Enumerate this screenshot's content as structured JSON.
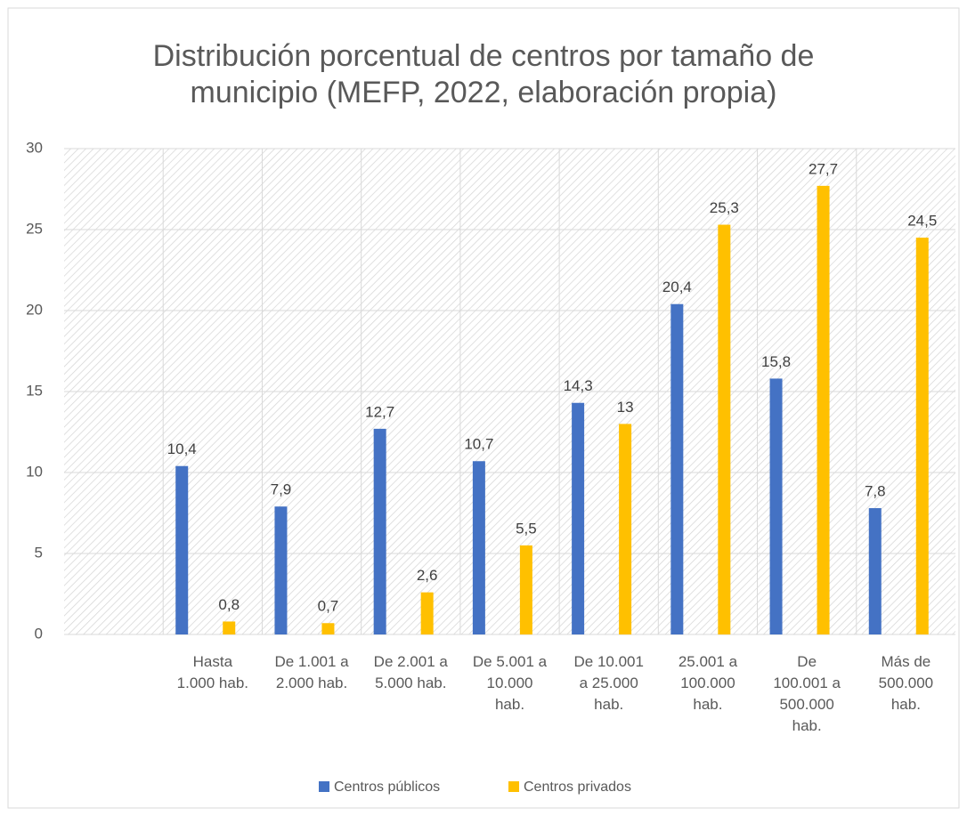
{
  "chart_data": {
    "type": "bar",
    "title": [
      "Distribución porcentual de centros por tamaño de",
      "municipio (MEFP, 2022, elaboración propia)"
    ],
    "categories": [
      null,
      "Hasta\n1.000 hab.",
      "De 1.001 a\n2.000 hab.",
      "De 2.001 a\n5.000 hab.",
      "De 5.001 a\n10.000\nhab.",
      "De 10.001\na 25.000\nhab.",
      "25.001 a\n100.000\nhab.",
      "De\n100.001 a\n500.000\nhab.",
      "Más de\n500.000\nhab."
    ],
    "series": [
      {
        "name": "Centros públicos",
        "color": "#4472c4",
        "values": [
          null,
          10.4,
          7.9,
          12.7,
          10.7,
          14.3,
          20.4,
          15.8,
          7.8
        ],
        "value_labels": [
          null,
          "10,4",
          "7,9",
          "12,7",
          "10,7",
          "14,3",
          "20,4",
          "15,8",
          "7,8"
        ]
      },
      {
        "name": "Centros privados",
        "color": "#ffc000",
        "values": [
          null,
          0.8,
          0.7,
          2.6,
          5.5,
          13,
          25.3,
          27.7,
          24.5
        ],
        "value_labels": [
          null,
          "0,8",
          "0,7",
          "2,6",
          "5,5",
          "13",
          "25,3",
          "27,7",
          "24,5"
        ]
      }
    ],
    "ylim": [
      0,
      30
    ],
    "yticks": [
      0,
      5,
      10,
      15,
      20,
      25,
      30
    ],
    "grid": true,
    "legend": "bottom"
  }
}
